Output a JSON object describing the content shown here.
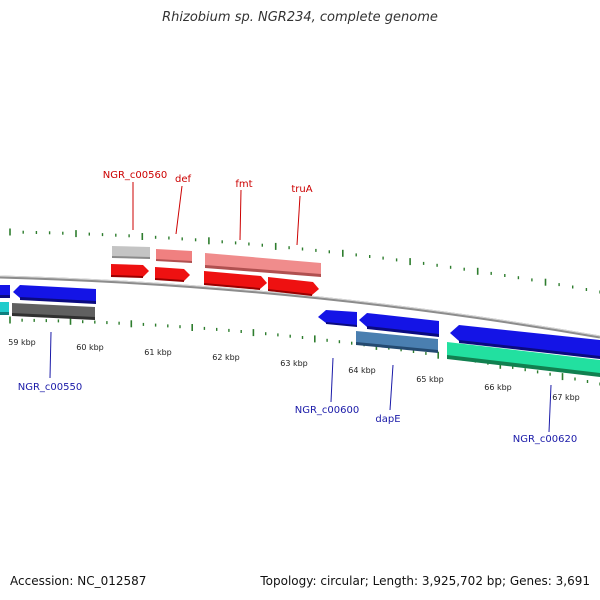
{
  "title": "Rhizobium sp. NGR234, complete genome",
  "footer": {
    "accession": "Accession: NC_012587",
    "topology": "Topology: circular; Length: 3,925,702 bp; Genes: 3,691"
  },
  "colors": {
    "backbone": "#8c8c8c",
    "tick": "#2e7d2e",
    "gene_label_forward": "#cc0000",
    "gene_label_reverse": "#1a1aa8",
    "cds_forward": "#ee1111",
    "cds_reverse": "#1414e6",
    "rna_forward": "#f08080",
    "pseudo_gray": "#c0c0c0",
    "dark_gray": "#606060",
    "cyan": "#22cccc",
    "steel_blue": "#4a7fb0",
    "sea_green": "#22e0a0"
  },
  "scale": {
    "unit": "kbp",
    "tick_labels": [
      "59 kbp",
      "60 kbp",
      "61 kbp",
      "62 kbp",
      "63 kbp",
      "64 kbp",
      "65 kbp",
      "66 kbp",
      "67 kbp"
    ]
  },
  "gene_labels": {
    "forward": [
      "NGR_c00560",
      "def",
      "fmt",
      "truA"
    ],
    "reverse": [
      "NGR_c00550",
      "NGR_c00600",
      "dapE",
      "NGR_c00620"
    ]
  }
}
